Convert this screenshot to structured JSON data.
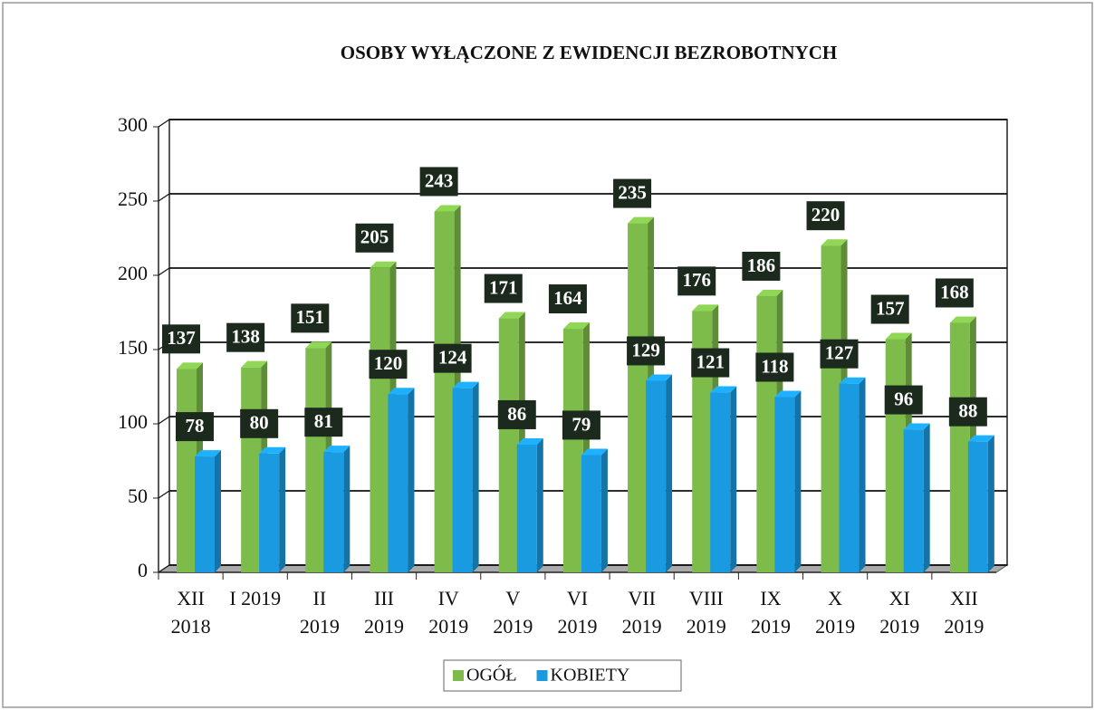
{
  "chart_data": {
    "type": "bar3d",
    "title": "OSOBY WYŁĄCZONE Z EWIDENCJI BEZROBOTNYCH",
    "categories": [
      [
        "XII",
        "2018"
      ],
      [
        "I 2019"
      ],
      [
        "II",
        "2019"
      ],
      [
        "III",
        "2019"
      ],
      [
        "IV",
        "2019"
      ],
      [
        "V",
        "2019"
      ],
      [
        "VI",
        "2019"
      ],
      [
        "VII",
        "2019"
      ],
      [
        "VIII",
        "2019"
      ],
      [
        "IX",
        "2019"
      ],
      [
        "X",
        "2019"
      ],
      [
        "XI",
        "2019"
      ],
      [
        "XII",
        "2019"
      ]
    ],
    "series": [
      {
        "name": "OGÓŁ",
        "color": "#7dbb4a",
        "values": [
          137,
          138,
          151,
          205,
          243,
          171,
          164,
          235,
          176,
          186,
          220,
          157,
          168
        ]
      },
      {
        "name": "KOBIETY",
        "color": "#1a9ae0",
        "values": [
          78,
          80,
          81,
          120,
          124,
          86,
          79,
          129,
          121,
          118,
          127,
          96,
          88
        ]
      }
    ],
    "ylim": [
      0,
      300
    ],
    "yticks": [
      0,
      50,
      100,
      150,
      200,
      250,
      300
    ],
    "grid": true,
    "legend": "bottom"
  }
}
